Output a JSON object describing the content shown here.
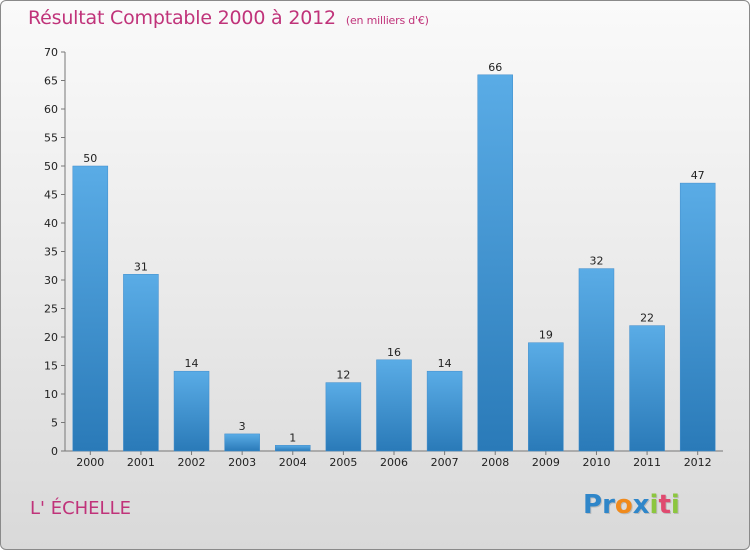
{
  "title": "Résultat Comptable 2000 à 2012",
  "subtitle": "(en milliers d'€)",
  "commune": "L' ÉCHELLE",
  "logo": {
    "letters": [
      {
        "ch": "P",
        "color": "#2f86c9"
      },
      {
        "ch": "r",
        "color": "#2f86c9"
      },
      {
        "ch": "o",
        "color": "#f08a1c"
      },
      {
        "ch": "x",
        "color": "#2f86c9"
      },
      {
        "ch": "i",
        "color": "#8cc63f"
      },
      {
        "ch": "t",
        "color": "#e04a6f"
      },
      {
        "ch": "i",
        "color": "#8cc63f"
      }
    ]
  },
  "colors": {
    "bar_light": "#5aace6",
    "bar_dark": "#2a7ab8",
    "title": "#c0337a"
  },
  "chart_data": {
    "type": "bar",
    "title": "Résultat Comptable 2000 à 2012",
    "subtitle": "(en milliers d'€)",
    "categories": [
      "2000",
      "2001",
      "2002",
      "2003",
      "2004",
      "2005",
      "2006",
      "2007",
      "2008",
      "2009",
      "2010",
      "2011",
      "2012"
    ],
    "values": [
      50,
      31,
      14,
      3,
      1,
      12,
      16,
      14,
      66,
      19,
      32,
      22,
      47
    ],
    "ylim": [
      0,
      70
    ],
    "yticks": [
      0,
      5,
      10,
      15,
      20,
      25,
      30,
      35,
      40,
      45,
      50,
      55,
      60,
      65,
      70
    ],
    "xlabel": "",
    "ylabel": "",
    "grid": false,
    "data_labels": true
  }
}
